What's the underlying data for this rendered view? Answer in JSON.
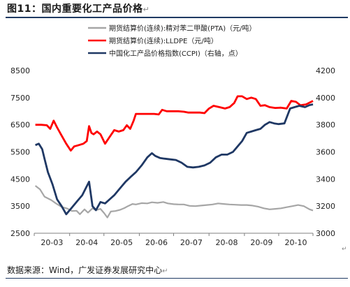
{
  "header": {
    "title": "图11：国内重要化工产品价格"
  },
  "footer": {
    "source": "数据来源：Wind，广发证券发展研究中心"
  },
  "edit_marks": {
    "title_mark": "↵",
    "chart_mark": "↵",
    "source_mark": "↵"
  },
  "colors": {
    "pta": "#a6a6a6",
    "lldpe": "#ff0000",
    "ccpi": "#1f3864",
    "rule": "#1f3a63"
  },
  "chart_data": {
    "type": "line",
    "title": "",
    "legend_position": "top-left",
    "grid": false,
    "x_ticks": [
      "20-03",
      "20-04",
      "20-05",
      "20-06",
      "20-07",
      "20-08",
      "20-09",
      "20-10"
    ],
    "x_range": [
      "2020-03-01",
      "2020-10-31"
    ],
    "y_left": {
      "min": 2500,
      "max": 8500,
      "ticks": [
        2500,
        3500,
        4500,
        5500,
        6500,
        7500,
        8500
      ]
    },
    "y_right": {
      "min": 3000,
      "max": 4200,
      "ticks": [
        3000,
        3200,
        3400,
        3600,
        3800,
        4000,
        4200
      ]
    },
    "series": [
      {
        "name": "期货结算价(连续):精对苯二甲酸(PTA)（元/吨）",
        "key": "pta",
        "axis": "left",
        "points": [
          [
            "2020-03-02",
            4250
          ],
          [
            "2020-03-06",
            4120
          ],
          [
            "2020-03-10",
            3850
          ],
          [
            "2020-03-16",
            3720
          ],
          [
            "2020-03-20",
            3600
          ],
          [
            "2020-03-25",
            3470
          ],
          [
            "2020-03-30",
            3410
          ],
          [
            "2020-04-03",
            3320
          ],
          [
            "2020-04-07",
            3330
          ],
          [
            "2020-04-10",
            3200
          ],
          [
            "2020-04-14",
            3380
          ],
          [
            "2020-04-17",
            3260
          ],
          [
            "2020-04-21",
            3420
          ],
          [
            "2020-04-24",
            3350
          ],
          [
            "2020-04-28",
            3400
          ],
          [
            "2020-05-01",
            3250
          ],
          [
            "2020-05-04",
            3080
          ],
          [
            "2020-05-07",
            3300
          ],
          [
            "2020-05-11",
            3320
          ],
          [
            "2020-05-15",
            3360
          ],
          [
            "2020-05-19",
            3430
          ],
          [
            "2020-05-22",
            3500
          ],
          [
            "2020-05-26",
            3580
          ],
          [
            "2020-05-29",
            3560
          ],
          [
            "2020-06-03",
            3610
          ],
          [
            "2020-06-08",
            3600
          ],
          [
            "2020-06-12",
            3640
          ],
          [
            "2020-06-17",
            3620
          ],
          [
            "2020-06-22",
            3650
          ],
          [
            "2020-06-26",
            3600
          ],
          [
            "2020-07-01",
            3570
          ],
          [
            "2020-07-06",
            3560
          ],
          [
            "2020-07-10",
            3560
          ],
          [
            "2020-07-15",
            3510
          ],
          [
            "2020-07-20",
            3500
          ],
          [
            "2020-07-25",
            3520
          ],
          [
            "2020-07-30",
            3540
          ],
          [
            "2020-08-04",
            3560
          ],
          [
            "2020-08-09",
            3600
          ],
          [
            "2020-08-14",
            3580
          ],
          [
            "2020-08-19",
            3560
          ],
          [
            "2020-08-24",
            3550
          ],
          [
            "2020-08-29",
            3540
          ],
          [
            "2020-09-03",
            3540
          ],
          [
            "2020-09-08",
            3520
          ],
          [
            "2020-09-13",
            3480
          ],
          [
            "2020-09-18",
            3420
          ],
          [
            "2020-09-23",
            3380
          ],
          [
            "2020-09-28",
            3400
          ],
          [
            "2020-10-03",
            3420
          ],
          [
            "2020-10-08",
            3460
          ],
          [
            "2020-10-13",
            3500
          ],
          [
            "2020-10-18",
            3540
          ],
          [
            "2020-10-23",
            3500
          ],
          [
            "2020-10-28",
            3380
          ],
          [
            "2020-10-31",
            3340
          ]
        ]
      },
      {
        "name": "期货结算价(连续):LLDPE（元/吨）",
        "key": "lldpe",
        "axis": "left",
        "points": [
          [
            "2020-03-02",
            6500
          ],
          [
            "2020-03-07",
            6500
          ],
          [
            "2020-03-12",
            6480
          ],
          [
            "2020-03-15",
            6350
          ],
          [
            "2020-03-18",
            6650
          ],
          [
            "2020-03-21",
            6400
          ],
          [
            "2020-03-25",
            6100
          ],
          [
            "2020-03-29",
            5800
          ],
          [
            "2020-04-02",
            5550
          ],
          [
            "2020-04-05",
            5700
          ],
          [
            "2020-04-09",
            5750
          ],
          [
            "2020-04-13",
            5800
          ],
          [
            "2020-04-16",
            5900
          ],
          [
            "2020-04-18",
            6450
          ],
          [
            "2020-04-20",
            6200
          ],
          [
            "2020-04-22",
            6150
          ],
          [
            "2020-04-25",
            6250
          ],
          [
            "2020-04-28",
            6150
          ],
          [
            "2020-05-02",
            5800
          ],
          [
            "2020-05-06",
            6050
          ],
          [
            "2020-05-10",
            6300
          ],
          [
            "2020-05-14",
            6250
          ],
          [
            "2020-05-18",
            6300
          ],
          [
            "2020-05-21",
            6480
          ],
          [
            "2020-05-24",
            6350
          ],
          [
            "2020-05-27",
            6650
          ],
          [
            "2020-05-29",
            6900
          ],
          [
            "2020-06-02",
            6900
          ],
          [
            "2020-06-08",
            6900
          ],
          [
            "2020-06-14",
            6900
          ],
          [
            "2020-06-18",
            6880
          ],
          [
            "2020-06-21",
            7050
          ],
          [
            "2020-06-25",
            7000
          ],
          [
            "2020-06-30",
            7000
          ],
          [
            "2020-07-05",
            7000
          ],
          [
            "2020-07-10",
            6980
          ],
          [
            "2020-07-14",
            6950
          ],
          [
            "2020-07-19",
            6950
          ],
          [
            "2020-07-24",
            6950
          ],
          [
            "2020-07-28",
            6930
          ],
          [
            "2020-08-01",
            7100
          ],
          [
            "2020-08-05",
            7200
          ],
          [
            "2020-08-10",
            7150
          ],
          [
            "2020-08-15",
            7100
          ],
          [
            "2020-08-19",
            7150
          ],
          [
            "2020-08-23",
            7300
          ],
          [
            "2020-08-26",
            7550
          ],
          [
            "2020-08-30",
            7550
          ],
          [
            "2020-09-03",
            7450
          ],
          [
            "2020-09-07",
            7500
          ],
          [
            "2020-09-11",
            7450
          ],
          [
            "2020-09-15",
            7200
          ],
          [
            "2020-09-19",
            7220
          ],
          [
            "2020-09-23",
            7150
          ],
          [
            "2020-09-28",
            7120
          ],
          [
            "2020-10-03",
            7130
          ],
          [
            "2020-10-08",
            7100
          ],
          [
            "2020-10-12",
            7380
          ],
          [
            "2020-10-16",
            7350
          ],
          [
            "2020-10-20",
            7220
          ],
          [
            "2020-10-25",
            7250
          ],
          [
            "2020-10-31",
            7380
          ]
        ]
      },
      {
        "name": "中国化工产品价格指数(CCPI)（右轴，点）",
        "key": "ccpi",
        "axis": "right",
        "points": [
          [
            "2020-03-02",
            3650
          ],
          [
            "2020-03-05",
            3660
          ],
          [
            "2020-03-08",
            3620
          ],
          [
            "2020-03-10",
            3550
          ],
          [
            "2020-03-13",
            3450
          ],
          [
            "2020-03-17",
            3360
          ],
          [
            "2020-03-21",
            3250
          ],
          [
            "2020-03-25",
            3200
          ],
          [
            "2020-03-29",
            3140
          ],
          [
            "2020-04-03",
            3190
          ],
          [
            "2020-04-08",
            3240
          ],
          [
            "2020-04-12",
            3280
          ],
          [
            "2020-04-15",
            3330
          ],
          [
            "2020-04-18",
            3380
          ],
          [
            "2020-04-21",
            3200
          ],
          [
            "2020-04-24",
            3170
          ],
          [
            "2020-04-28",
            3230
          ],
          [
            "2020-05-02",
            3220
          ],
          [
            "2020-05-06",
            3250
          ],
          [
            "2020-05-10",
            3280
          ],
          [
            "2020-05-15",
            3330
          ],
          [
            "2020-05-20",
            3380
          ],
          [
            "2020-05-25",
            3420
          ],
          [
            "2020-05-29",
            3450
          ],
          [
            "2020-06-03",
            3500
          ],
          [
            "2020-06-08",
            3560
          ],
          [
            "2020-06-12",
            3590
          ],
          [
            "2020-06-15",
            3570
          ],
          [
            "2020-06-19",
            3555
          ],
          [
            "2020-06-23",
            3550
          ],
          [
            "2020-06-28",
            3545
          ],
          [
            "2020-07-03",
            3540
          ],
          [
            "2020-07-08",
            3520
          ],
          [
            "2020-07-13",
            3490
          ],
          [
            "2020-07-18",
            3485
          ],
          [
            "2020-07-23",
            3490
          ],
          [
            "2020-07-28",
            3500
          ],
          [
            "2020-08-02",
            3520
          ],
          [
            "2020-08-07",
            3560
          ],
          [
            "2020-08-12",
            3580
          ],
          [
            "2020-08-17",
            3580
          ],
          [
            "2020-08-22",
            3600
          ],
          [
            "2020-08-26",
            3640
          ],
          [
            "2020-08-30",
            3680
          ],
          [
            "2020-09-03",
            3740
          ],
          [
            "2020-09-07",
            3750
          ],
          [
            "2020-09-11",
            3760
          ],
          [
            "2020-09-15",
            3770
          ],
          [
            "2020-09-19",
            3800
          ],
          [
            "2020-09-23",
            3820
          ],
          [
            "2020-09-27",
            3810
          ],
          [
            "2020-10-01",
            3805
          ],
          [
            "2020-10-06",
            3810
          ],
          [
            "2020-10-11",
            3920
          ],
          [
            "2020-10-15",
            3930
          ],
          [
            "2020-10-19",
            3940
          ],
          [
            "2020-10-24",
            3930
          ],
          [
            "2020-10-28",
            3945
          ],
          [
            "2020-10-31",
            3950
          ]
        ]
      }
    ]
  }
}
